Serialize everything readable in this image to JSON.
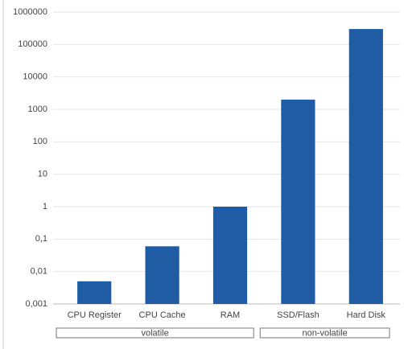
{
  "chart_data": {
    "type": "bar",
    "log_scale": true,
    "grid": true,
    "color": "#1f5ca3",
    "categories": [
      "CPU Register",
      "CPU Cache",
      "RAM",
      "SSD/Flash",
      "Hard Disk"
    ],
    "values": [
      0.005,
      0.06,
      1,
      2000,
      300000
    ],
    "ylim": [
      0.001,
      1000000
    ],
    "yticks": [
      {
        "value": 0.001,
        "label": "0,001"
      },
      {
        "value": 0.01,
        "label": "0,01"
      },
      {
        "value": 0.1,
        "label": "0,1"
      },
      1,
      10,
      100,
      1000,
      10000,
      100000,
      1000000
    ],
    "groups": [
      {
        "label": "volatile",
        "span": 3
      },
      {
        "label": "non-volatile",
        "span": 2
      }
    ]
  }
}
